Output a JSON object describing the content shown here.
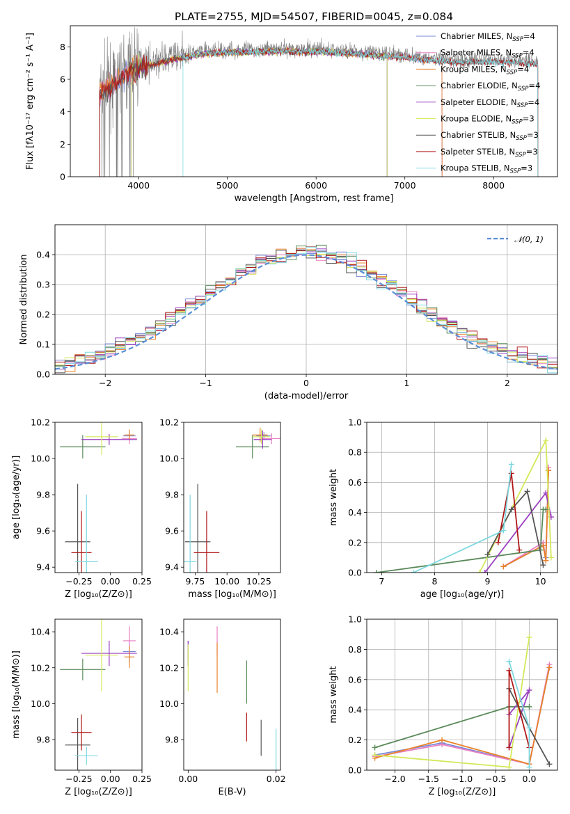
{
  "colors": {
    "Chabrier MILES": "#7a89d8",
    "Salpeter MILES": "#e87fc4",
    "Kroupa MILES": "#e8832a",
    "Chabrier ELODIE": "#5a8a5a",
    "Salpeter ELODIE": "#9b3fc0",
    "Kroupa ELODIE": "#d4e85a",
    "Chabrier STELIB": "#555555",
    "Salpeter STELIB": "#b01818",
    "Kroupa STELIB": "#7fd8e0",
    "normal": "#5b8ed6",
    "obs": "#808080"
  },
  "chart_data": [
    {
      "type": "line",
      "title": "PLATE=2755, MJD=54507, FIBERID=0045, z=0.084",
      "xlabel": "wavelength [Angstrom, rest frame]",
      "ylabel": "Flux [fλ10⁻¹⁷ erg cm⁻² s⁻¹ A⁻¹]",
      "xlim": [
        3230,
        8720
      ],
      "ylim": [
        0,
        9.3
      ],
      "xticks": [
        4000,
        5000,
        6000,
        7000,
        8000
      ],
      "yticks": [
        0,
        2,
        4,
        6,
        8
      ],
      "legend_position": "right",
      "legend": [
        {
          "model": "Chabrier MILES",
          "nssp": "4"
        },
        {
          "model": "Salpeter MILES",
          "nssp": "4"
        },
        {
          "model": "Kroupa MILES",
          "nssp": "4"
        },
        {
          "model": "Chabrier ELODIE",
          "nssp": "4"
        },
        {
          "model": "Salpeter ELODIE",
          "nssp": "4"
        },
        {
          "model": "Kroupa ELODIE",
          "nssp": "3"
        },
        {
          "model": "Chabrier STELIB",
          "nssp": "3"
        },
        {
          "model": "Salpeter STELIB",
          "nssp": "3"
        },
        {
          "model": "Kroupa STELIB",
          "nssp": "3"
        }
      ],
      "observed_range": [
        3560,
        8500
      ],
      "miles_range": [
        3560,
        7420
      ],
      "elodie_range": [
        3920,
        6800
      ],
      "stelib_range": [
        3560,
        8500
      ],
      "continuum": [
        [
          3560,
          5.3
        ],
        [
          3700,
          5.8
        ],
        [
          3800,
          6.2
        ],
        [
          3900,
          6.6
        ],
        [
          4000,
          6.9
        ],
        [
          4200,
          7.1
        ],
        [
          4400,
          7.4
        ],
        [
          4600,
          7.6
        ],
        [
          4800,
          7.75
        ],
        [
          5000,
          7.8
        ],
        [
          5200,
          7.8
        ],
        [
          5400,
          7.85
        ],
        [
          5600,
          7.9
        ],
        [
          5800,
          7.85
        ],
        [
          6000,
          7.85
        ],
        [
          6200,
          7.8
        ],
        [
          6400,
          7.75
        ],
        [
          6600,
          7.65
        ],
        [
          6800,
          7.55
        ],
        [
          7000,
          7.5
        ],
        [
          7200,
          7.35
        ],
        [
          7400,
          7.25
        ],
        [
          7600,
          7.15
        ],
        [
          7800,
          7.2
        ],
        [
          8000,
          7.2
        ],
        [
          8200,
          7.2
        ],
        [
          8500,
          7.1
        ]
      ]
    },
    {
      "type": "line",
      "xlabel": "(data-model)/error",
      "ylabel": "Normed distribution",
      "xlim": [
        -2.5,
        2.5
      ],
      "ylim": [
        0,
        0.5
      ],
      "xticks": [
        -2,
        -1,
        0,
        1,
        2
      ],
      "yticks": [
        0.0,
        0.1,
        0.2,
        0.3,
        0.4
      ],
      "legend": "𝒩(0, 1)",
      "legend_position": "top-right",
      "bin_width": 0.1,
      "grid": true
    },
    {
      "type": "scatter",
      "xlabel": "Z [log₁₀(Z/Z⊙)]",
      "ylabel": "age  [log₁₀(age/yr)]",
      "xlim": [
        -0.44,
        0.25
      ],
      "ylim": [
        9.37,
        10.2
      ],
      "xticks": [
        -0.25,
        0.0,
        0.25
      ],
      "yticks": [
        9.4,
        9.6,
        9.8,
        10.0,
        10.2
      ],
      "points": [
        {
          "model": "Chabrier MILES",
          "x": 0.15,
          "xerr": 0.05,
          "y": 10.125,
          "yerr": 0.02
        },
        {
          "model": "Salpeter MILES",
          "x": 0.15,
          "xerr": 0.06,
          "y": 10.11,
          "yerr": 0.03
        },
        {
          "model": "Kroupa MILES",
          "x": 0.15,
          "xerr": 0.04,
          "y": 10.13,
          "yerr": 0.03
        },
        {
          "model": "Chabrier ELODIE",
          "x": -0.22,
          "xerr": 0.18,
          "y": 10.065,
          "yerr": 0.065
        },
        {
          "model": "Salpeter ELODIE",
          "x": -0.01,
          "xerr": 0.22,
          "y": 10.105,
          "yerr": 0.03
        },
        {
          "model": "Kroupa ELODIE",
          "x": -0.07,
          "xerr": 0.13,
          "y": 10.12,
          "yerr": 0.1
        },
        {
          "model": "Chabrier STELIB",
          "x": -0.26,
          "xerr": 0.1,
          "y": 9.54,
          "yerr": 0.32
        },
        {
          "model": "Salpeter STELIB",
          "x": -0.23,
          "xerr": 0.08,
          "y": 9.48,
          "yerr": 0.23
        },
        {
          "model": "Kroupa STELIB",
          "x": -0.19,
          "xerr": 0.09,
          "y": 9.43,
          "yerr": 0.37
        }
      ]
    },
    {
      "type": "scatter",
      "xlabel": "mass [log₁₀(M/M⊙)]",
      "xlim": [
        9.66,
        10.42
      ],
      "ylim": [
        9.37,
        10.2
      ],
      "xticks": [
        9.75,
        10.0,
        10.25
      ],
      "yticks": [
        9.4,
        9.6,
        9.8,
        10.0,
        10.2
      ],
      "points": [
        {
          "model": "Chabrier MILES",
          "x": 10.29,
          "xerr": 0.06,
          "y": 10.125,
          "yerr": 0.02
        },
        {
          "model": "Salpeter MILES",
          "x": 10.35,
          "xerr": 0.08,
          "y": 10.11,
          "yerr": 0.03
        },
        {
          "model": "Kroupa MILES",
          "x": 10.26,
          "xerr": 0.06,
          "y": 10.13,
          "yerr": 0.04
        },
        {
          "model": "Chabrier ELODIE",
          "x": 10.2,
          "xerr": 0.13,
          "y": 10.065,
          "yerr": 0.065
        },
        {
          "model": "Salpeter ELODIE",
          "x": 10.28,
          "xerr": 0.07,
          "y": 10.105,
          "yerr": 0.05
        },
        {
          "model": "Kroupa ELODIE",
          "x": 10.27,
          "xerr": 0.07,
          "y": 10.12,
          "yerr": 0.04
        },
        {
          "model": "Chabrier STELIB",
          "x": 9.77,
          "xerr": 0.1,
          "y": 9.54,
          "yerr": 0.32
        },
        {
          "model": "Salpeter STELIB",
          "x": 9.84,
          "xerr": 0.1,
          "y": 9.48,
          "yerr": 0.23
        },
        {
          "model": "Kroupa STELIB",
          "x": 9.71,
          "xerr": 0.05,
          "y": 9.43,
          "yerr": 0.37
        }
      ]
    },
    {
      "type": "line",
      "xlabel": "age  [log₁₀(age/yr)]",
      "ylabel": "mass weight",
      "xlim": [
        6.72,
        10.32
      ],
      "ylim": [
        0,
        1
      ],
      "xticks": [
        7,
        8,
        9,
        10
      ],
      "yticks": [
        0.0,
        0.2,
        0.4,
        0.6,
        0.8,
        1.0
      ],
      "grid": true,
      "series": [
        {
          "model": "Chabrier MILES",
          "points": [
            [
              9.3,
              0.04
            ],
            [
              10.05,
              0.18
            ],
            [
              10.1,
              0.1
            ],
            [
              10.15,
              0.68
            ]
          ]
        },
        {
          "model": "Salpeter MILES",
          "points": [
            [
              9.3,
              0.04
            ],
            [
              10.05,
              0.2
            ],
            [
              10.1,
              0.08
            ],
            [
              10.15,
              0.7
            ]
          ]
        },
        {
          "model": "Kroupa MILES",
          "points": [
            [
              9.3,
              0.04
            ],
            [
              10.05,
              0.18
            ],
            [
              10.1,
              0.08
            ],
            [
              10.15,
              0.68
            ]
          ]
        },
        {
          "model": "Chabrier ELODIE",
          "points": [
            [
              6.9,
              0.0
            ],
            [
              10.0,
              0.15
            ],
            [
              10.05,
              0.42
            ],
            [
              10.1,
              0.42
            ]
          ]
        },
        {
          "model": "Salpeter ELODIE",
          "points": [
            [
              8.95,
              0.0
            ],
            [
              10.1,
              0.53
            ],
            [
              10.2,
              0.37
            ]
          ]
        },
        {
          "model": "Kroupa ELODIE",
          "points": [
            [
              8.85,
              0.0
            ],
            [
              10.1,
              0.88
            ],
            [
              10.2,
              0.1
            ]
          ]
        },
        {
          "model": "Chabrier STELIB",
          "points": [
            [
              9.0,
              0.12
            ],
            [
              9.45,
              0.42
            ],
            [
              9.75,
              0.54
            ],
            [
              10.05,
              0.05
            ]
          ]
        },
        {
          "model": "Salpeter STELIB",
          "points": [
            [
              9.2,
              0.2
            ],
            [
              9.45,
              0.66
            ],
            [
              9.6,
              0.15
            ]
          ]
        },
        {
          "model": "Kroupa STELIB",
          "points": [
            [
              7.6,
              0.0
            ],
            [
              9.3,
              0.28
            ],
            [
              9.45,
              0.72
            ]
          ]
        }
      ]
    },
    {
      "type": "scatter",
      "xlabel": "Z [log₁₀(Z/Z⊙)]",
      "ylabel": "mass [log₁₀(M/M⊙)]",
      "xlim": [
        -0.44,
        0.25
      ],
      "ylim": [
        9.63,
        10.47
      ],
      "xticks": [
        -0.25,
        0.0,
        0.25
      ],
      "yticks": [
        9.8,
        10.0,
        10.2,
        10.4
      ],
      "points": [
        {
          "model": "Chabrier MILES",
          "x": 0.15,
          "xerr": 0.05,
          "y": 10.29,
          "yerr": 0.06
        },
        {
          "model": "Salpeter MILES",
          "x": 0.15,
          "xerr": 0.05,
          "y": 10.35,
          "yerr": 0.08
        },
        {
          "model": "Kroupa MILES",
          "x": 0.15,
          "xerr": 0.04,
          "y": 10.26,
          "yerr": 0.06
        },
        {
          "model": "Chabrier ELODIE",
          "x": -0.22,
          "xerr": 0.18,
          "y": 10.19,
          "yerr": 0.06
        },
        {
          "model": "Salpeter ELODIE",
          "x": -0.01,
          "xerr": 0.22,
          "y": 10.28,
          "yerr": 0.07
        },
        {
          "model": "Kroupa ELODIE",
          "x": -0.07,
          "xerr": 0.13,
          "y": 10.27,
          "yerr": 0.2
        },
        {
          "model": "Chabrier STELIB",
          "x": -0.26,
          "xerr": 0.1,
          "y": 9.77,
          "yerr": 0.15
        },
        {
          "model": "Salpeter STELIB",
          "x": -0.23,
          "xerr": 0.08,
          "y": 9.84,
          "yerr": 0.1
        },
        {
          "model": "Kroupa STELIB",
          "x": -0.19,
          "xerr": 0.09,
          "y": 9.71,
          "yerr": 0.05
        }
      ]
    },
    {
      "type": "scatter",
      "xlabel": "E(B-V)",
      "xlim": [
        -0.001,
        0.021
      ],
      "ylim": [
        9.63,
        10.47
      ],
      "xticks": [
        0.0,
        0.02
      ],
      "xticklabels": [
        "0.00",
        "0.02"
      ],
      "yticks": [
        9.8,
        10.0,
        10.2,
        10.4
      ],
      "points": [
        {
          "model": "Chabrier MILES",
          "x": 0.0,
          "y": 10.29,
          "yerr": 0.06
        },
        {
          "model": "Salpeter MILES",
          "x": 0.0066,
          "y": 10.35,
          "yerr": 0.08
        },
        {
          "model": "Kroupa MILES",
          "x": 0.0066,
          "y": 10.2,
          "yerr": 0.14
        },
        {
          "model": "Chabrier ELODIE",
          "x": 0.0133,
          "y": 10.12,
          "yerr": 0.12
        },
        {
          "model": "Salpeter ELODIE",
          "x": 0.0,
          "y": 10.28,
          "yerr": 0.07
        },
        {
          "model": "Kroupa ELODIE",
          "x": 0.0,
          "y": 10.2,
          "yerr": 0.13
        },
        {
          "model": "Chabrier STELIB",
          "x": 0.0166,
          "y": 9.81,
          "yerr": 0.1
        },
        {
          "model": "Salpeter STELIB",
          "x": 0.0133,
          "y": 9.87,
          "yerr": 0.08
        },
        {
          "model": "Kroupa STELIB",
          "x": 0.02,
          "y": 9.71,
          "yerr": 0.15
        }
      ]
    },
    {
      "type": "line",
      "xlabel": "Z [log₁₀(Z/Z⊙)]",
      "ylabel": "mass weight",
      "xlim": [
        -2.42,
        0.42
      ],
      "ylim": [
        0,
        1
      ],
      "xticks": [
        -2.0,
        -1.5,
        -1.0,
        -0.5,
        0.0
      ],
      "yticks": [
        0.0,
        0.2,
        0.4,
        0.6,
        0.8,
        1.0
      ],
      "grid": true,
      "series": [
        {
          "model": "Chabrier MILES",
          "points": [
            [
              -2.3,
              0.1
            ],
            [
              -1.3,
              0.18
            ],
            [
              0.0,
              0.04
            ],
            [
              0.3,
              0.68
            ]
          ]
        },
        {
          "model": "Salpeter MILES",
          "points": [
            [
              -2.3,
              0.09
            ],
            [
              -1.3,
              0.17
            ],
            [
              0.0,
              0.04
            ],
            [
              0.3,
              0.7
            ]
          ]
        },
        {
          "model": "Kroupa MILES",
          "points": [
            [
              -2.3,
              0.08
            ],
            [
              -1.3,
              0.2
            ],
            [
              0.0,
              0.04
            ],
            [
              0.3,
              0.68
            ]
          ]
        },
        {
          "model": "Chabrier ELODIE",
          "points": [
            [
              -2.3,
              0.15
            ],
            [
              -0.3,
              0.42
            ],
            [
              0.0,
              0.42
            ]
          ]
        },
        {
          "model": "Salpeter ELODIE",
          "points": [
            [
              -0.3,
              0.15
            ],
            [
              0.0,
              0.53
            ],
            [
              -0.3,
              0.37
            ]
          ]
        },
        {
          "model": "Kroupa ELODIE",
          "points": [
            [
              -2.3,
              0.1
            ],
            [
              -0.3,
              0.02
            ],
            [
              0.0,
              0.88
            ]
          ]
        },
        {
          "model": "Chabrier STELIB",
          "points": [
            [
              -0.3,
              0.54
            ],
            [
              0.0,
              0.28
            ],
            [
              0.3,
              0.04
            ]
          ]
        },
        {
          "model": "Salpeter STELIB",
          "points": [
            [
              -0.3,
              0.15
            ],
            [
              -0.3,
              0.66
            ],
            [
              0.0,
              0.15
            ]
          ]
        },
        {
          "model": "Kroupa STELIB",
          "points": [
            [
              -0.3,
              0.72
            ],
            [
              0.0,
              0.28
            ],
            [
              0.0,
              0.02
            ]
          ]
        }
      ]
    }
  ]
}
